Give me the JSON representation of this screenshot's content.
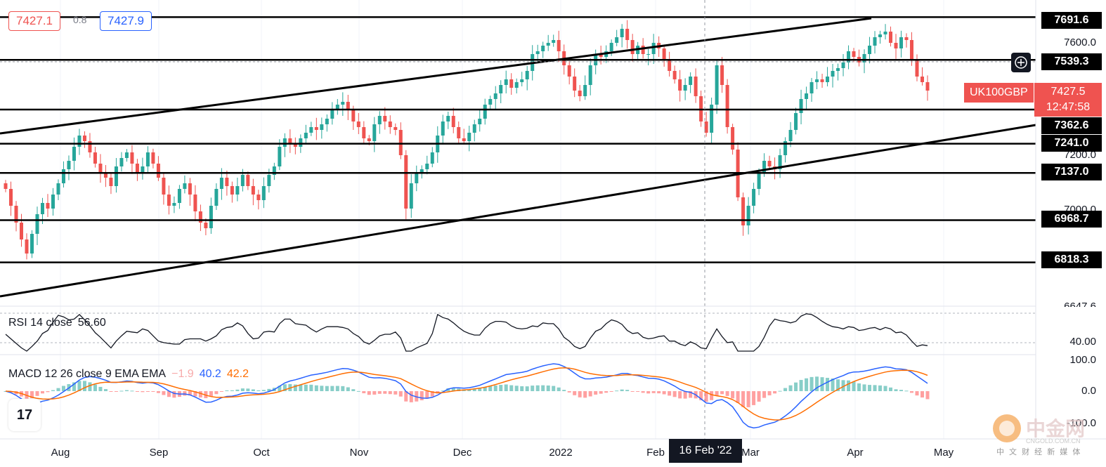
{
  "header": {
    "bid_price": "7427.1",
    "spread": "0.8",
    "ask_price": "7427.9",
    "bid_color": "#ef5350",
    "ask_color": "#2962ff"
  },
  "price_axis": {
    "ticks": [
      "7600.0",
      "7200.0",
      "7000.0"
    ],
    "partial_tick": "6647.6"
  },
  "levels": [
    {
      "value": 7691.6,
      "label": "7691.6"
    },
    {
      "value": 7539.3,
      "label": "7539.3"
    },
    {
      "value": 7362.6,
      "label": "7362.6"
    },
    {
      "value": 7241.0,
      "label": "7241.0"
    },
    {
      "value": 7137.0,
      "label": "7137.0"
    },
    {
      "value": 6968.7,
      "label": "6968.7"
    },
    {
      "value": 6818.3,
      "label": "6818.3"
    }
  ],
  "symbol": {
    "name": "UK100GBP",
    "last_price": "7427.5",
    "countdown": "12:47:58"
  },
  "time_axis": {
    "months": [
      "Aug",
      "Sep",
      "Oct",
      "Nov",
      "Dec",
      "2022",
      "Feb",
      "Mar",
      "Apr",
      "May"
    ],
    "crosshair_date": "16 Feb '22"
  },
  "rsi": {
    "title": "RSI 14 close",
    "value": "56.60",
    "axis_label": "40.00",
    "line_color": "#131722"
  },
  "macd": {
    "title": "MACD 12 26 close 9 EMA EMA",
    "hist_value": "−1.9",
    "macd_value": "40.2",
    "signal_value": "42.2",
    "hist_color": "#f7a9a9",
    "macd_color": "#2962ff",
    "signal_color": "#ff6d00",
    "axis_labels": [
      "100.0",
      "0.0",
      "-100.0"
    ]
  },
  "logo": {
    "text": "17"
  },
  "watermark": {
    "brand": "中金网",
    "sub": "中 文 财 经 新 媒 体",
    "site": "CNGOLD.COM.CN"
  },
  "icons": {
    "add": "plus-circle-icon",
    "logo": "tradingview-logo-icon"
  },
  "colors": {
    "up": "#26a69a",
    "down": "#ef5350",
    "grid": "#f0f3fa",
    "line": "#000000"
  },
  "chart_data": {
    "type": "candlestick",
    "symbol": "UK100GBP",
    "approx_closes": [
      7080,
      7020,
      6960,
      6900,
      6850,
      6920,
      6990,
      7030,
      7010,
      7060,
      7100,
      7150,
      7180,
      7230,
      7270,
      7250,
      7210,
      7170,
      7140,
      7120,
      7090,
      7160,
      7190,
      7210,
      7170,
      7140,
      7160,
      7210,
      7170,
      7120,
      7060,
      7020,
      7030,
      7080,
      7100,
      7060,
      7000,
      6960,
      6940,
      7020,
      7080,
      7120,
      7090,
      7060,
      7090,
      7130,
      7090,
      7060,
      7040,
      7090,
      7130,
      7160,
      7230,
      7260,
      7240,
      7230,
      7260,
      7280,
      7300,
      7290,
      7310,
      7330,
      7360,
      7380,
      7390,
      7360,
      7320,
      7300,
      7260,
      7250,
      7310,
      7340,
      7320,
      7300,
      7290,
      7200,
      7010,
      7100,
      7140,
      7150,
      7170,
      7210,
      7270,
      7320,
      7340,
      7300,
      7260,
      7250,
      7280,
      7310,
      7330,
      7380,
      7400,
      7420,
      7450,
      7470,
      7440,
      7460,
      7470,
      7500,
      7560,
      7570,
      7590,
      7600,
      7610,
      7570,
      7520,
      7480,
      7430,
      7410,
      7450,
      7520,
      7560,
      7550,
      7570,
      7600,
      7620,
      7650,
      7610,
      7560,
      7590,
      7560,
      7560,
      7600,
      7580,
      7540,
      7500,
      7470,
      7430,
      7450,
      7480,
      7410,
      7320,
      7280,
      7380,
      7520,
      7450,
      7300,
      7220,
      7050,
      6950,
      7020,
      7080,
      7140,
      7180,
      7160,
      7150,
      7200,
      7250,
      7290,
      7350,
      7400,
      7420,
      7460,
      7470,
      7460,
      7480,
      7500,
      7510,
      7530,
      7570,
      7550,
      7530,
      7560,
      7590,
      7620,
      7630,
      7640,
      7600,
      7580,
      7620,
      7610,
      7540,
      7480,
      7460,
      7430
    ],
    "horizontal_levels": [
      7691.6,
      7539.3,
      7362.6,
      7241.0,
      7137.0,
      6968.7,
      6818.3
    ],
    "last_price": 7427.5,
    "rsi_last": 56.6,
    "macd": {
      "histogram": -1.9,
      "macd": 40.2,
      "signal": 42.2
    }
  }
}
